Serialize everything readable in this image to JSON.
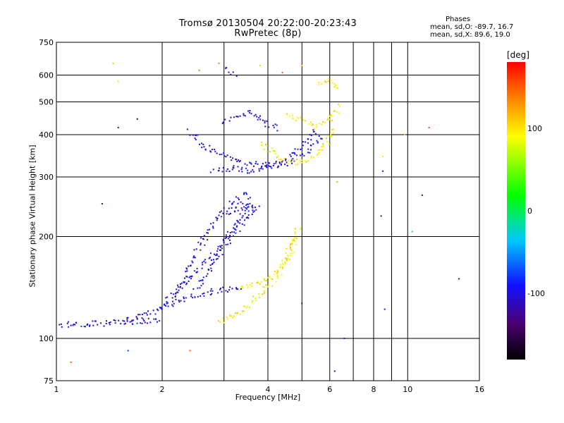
{
  "header": {
    "title": "Tromsø 20130504 20:22:00-20:23:43",
    "subtitle": "RwPretec (8p)",
    "stats_title": "Phases",
    "stats_o": "mean, sd,O: -89.7, 16.7",
    "stats_x": "mean, sd,X:  89.6, 19.0"
  },
  "chart_data": {
    "type": "scatter",
    "xlabel": "Frequency [MHz]",
    "ylabel": "Stationary phase Virtual Height [km]",
    "x_scale": "log",
    "y_scale": "log",
    "xlim": [
      1,
      16
    ],
    "ylim": [
      75,
      750
    ],
    "grid": true,
    "x_ticks": [
      {
        "value": 1,
        "label": "1"
      },
      {
        "value": 2,
        "label": "2"
      },
      {
        "value": 4,
        "label": "4"
      },
      {
        "value": 6,
        "label": "6"
      },
      {
        "value": 8,
        "label": "8"
      },
      {
        "value": 10,
        "label": "10"
      },
      {
        "value": 16,
        "label": "16"
      }
    ],
    "x_grid_extra": [
      3,
      5,
      7,
      9
    ],
    "y_ticks": [
      {
        "value": 75,
        "label": "75"
      },
      {
        "value": 100,
        "label": "100"
      },
      {
        "value": 200,
        "label": "200"
      },
      {
        "value": 300,
        "label": "300"
      },
      {
        "value": 400,
        "label": "400"
      },
      {
        "value": 500,
        "label": "500"
      },
      {
        "value": 600,
        "label": "600"
      },
      {
        "value": 750,
        "label": "750"
      }
    ],
    "colorbar": {
      "title": "[deg]",
      "range": [
        -180,
        180
      ],
      "ticks": [
        {
          "value": 100,
          "label": "100"
        },
        {
          "value": 0,
          "label": "0"
        },
        {
          "value": -100,
          "label": "-100"
        }
      ]
    },
    "series": [
      {
        "mode": "O",
        "phase": -100,
        "segments": [
          {
            "f": [
              1.02,
              1.2,
              1.6,
              2.0
            ],
            "h": [
              110,
              110,
              112,
              113
            ]
          },
          {
            "f": [
              1.55,
              1.9,
              2.3,
              2.8,
              3.4
            ],
            "h": [
              112,
              120,
              130,
              138,
              142
            ]
          },
          {
            "f": [
              2.0,
              2.4,
              2.9,
              3.3,
              3.6
            ],
            "h": [
              125,
              150,
              185,
              220,
              260
            ]
          },
          {
            "f": [
              2.2,
              2.5,
              2.9,
              3.2,
              3.5
            ],
            "h": [
              135,
              180,
              230,
              255,
              270
            ]
          },
          {
            "f": [
              2.5,
              2.9,
              3.2,
              3.5,
              3.8
            ],
            "h": [
              140,
              175,
              205,
              230,
              250
            ]
          },
          {
            "f": [
              2.4,
              2.6,
              3.0,
              3.5,
              4.0,
              4.6,
              5.2,
              5.7
            ],
            "h": [
              410,
              370,
              345,
              330,
              325,
              335,
              360,
              400
            ]
          },
          {
            "f": [
              2.8,
              3.2,
              3.6,
              4.0,
              4.5,
              5.0,
              5.5
            ],
            "h": [
              310,
              320,
              310,
              320,
              330,
              370,
              420
            ]
          },
          {
            "f": [
              3.0,
              3.3,
              3.6,
              4.0,
              4.3
            ],
            "h": [
              440,
              450,
              470,
              430,
              415
            ]
          },
          {
            "f": [
              3.05,
              3.15,
              3.25
            ],
            "h": [
              620,
              610,
              600
            ]
          },
          {
            "f": [
              3.1,
              3.4,
              3.7
            ],
            "h": [
              230,
              250,
              240
            ]
          }
        ]
      },
      {
        "mode": "X",
        "phase": 95,
        "segments": [
          {
            "f": [
              2.9,
              3.3,
              3.8,
              4.3,
              4.8
            ],
            "h": [
              112,
              118,
              135,
              155,
              200
            ]
          },
          {
            "f": [
              3.3,
              3.7,
              4.2,
              4.6,
              4.9
            ],
            "h": [
              140,
              145,
              155,
              175,
              215
            ]
          },
          {
            "f": [
              3.8,
              4.3,
              4.8,
              5.3,
              5.8,
              6.2
            ],
            "h": [
              380,
              340,
              330,
              340,
              370,
              420
            ]
          },
          {
            "f": [
              4.5,
              5.0,
              5.5,
              6.0,
              6.4
            ],
            "h": [
              460,
              440,
              420,
              440,
              490
            ]
          },
          {
            "f": [
              5.6,
              6.0,
              6.3
            ],
            "h": [
              560,
              580,
              540
            ]
          }
        ]
      }
    ],
    "scattered_points": [
      {
        "f": 1.1,
        "h": 85,
        "phase": 150
      },
      {
        "f": 1.35,
        "h": 250,
        "phase": -130
      },
      {
        "f": 1.45,
        "h": 650,
        "phase": 110
      },
      {
        "f": 1.5,
        "h": 575,
        "phase": 100
      },
      {
        "f": 1.5,
        "h": 420,
        "phase": -120
      },
      {
        "f": 1.6,
        "h": 92,
        "phase": -80
      },
      {
        "f": 1.7,
        "h": 445,
        "phase": -150
      },
      {
        "f": 2.55,
        "h": 620,
        "phase": 140
      },
      {
        "f": 2.4,
        "h": 92,
        "phase": 150
      },
      {
        "f": 2.9,
        "h": 650,
        "phase": 140
      },
      {
        "f": 3.8,
        "h": 640,
        "phase": 110
      },
      {
        "f": 4.4,
        "h": 610,
        "phase": 150
      },
      {
        "f": 5.0,
        "h": 640,
        "phase": 110
      },
      {
        "f": 5.0,
        "h": 127,
        "phase": -130
      },
      {
        "f": 6.3,
        "h": 290,
        "phase": 120
      },
      {
        "f": 6.6,
        "h": 100,
        "phase": -110
      },
      {
        "f": 8.4,
        "h": 230,
        "phase": -110
      },
      {
        "f": 8.5,
        "h": 345,
        "phase": 100
      },
      {
        "f": 8.5,
        "h": 312,
        "phase": -110
      },
      {
        "f": 8.6,
        "h": 122,
        "phase": -100
      },
      {
        "f": 9.8,
        "h": 400,
        "phase": 110
      },
      {
        "f": 10.3,
        "h": 207,
        "phase": 0
      },
      {
        "f": 11.0,
        "h": 265,
        "phase": -100
      },
      {
        "f": 11.5,
        "h": 420,
        "phase": 160
      },
      {
        "f": 14.0,
        "h": 150,
        "phase": -100
      },
      {
        "f": 6.2,
        "h": 80,
        "phase": -100
      }
    ]
  }
}
